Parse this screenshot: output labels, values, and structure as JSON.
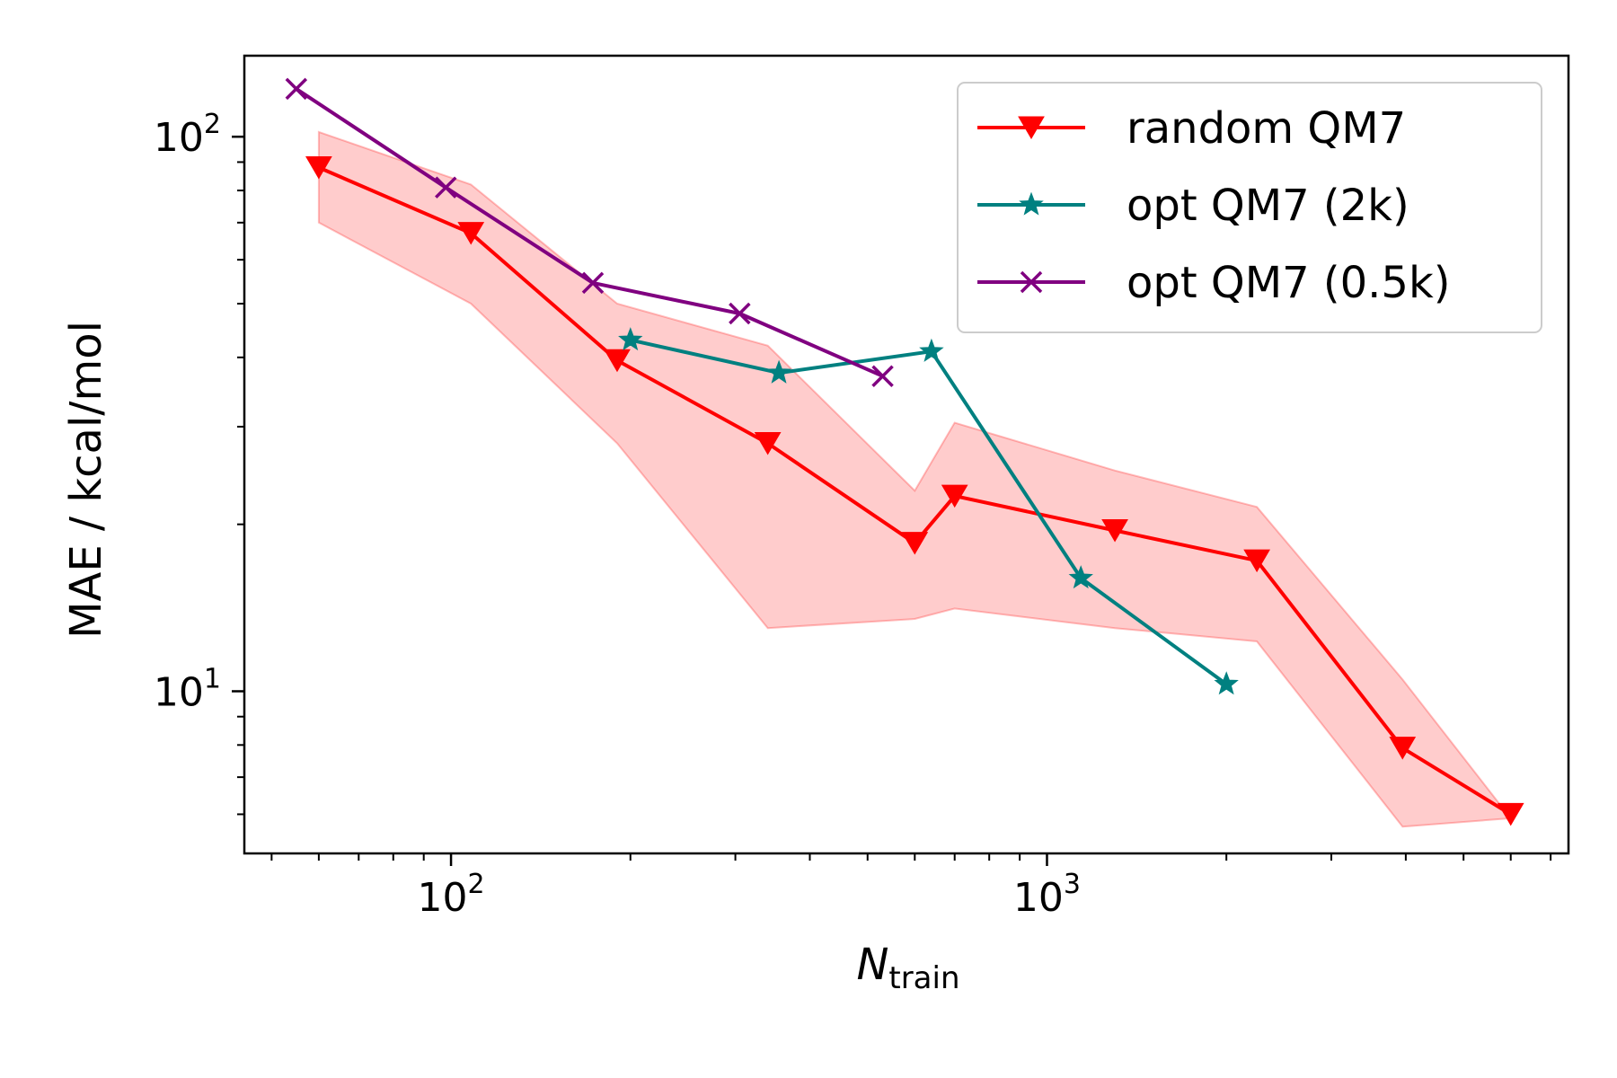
{
  "chart_data": {
    "type": "line",
    "title": "",
    "xlabel": "N",
    "xlabel_sub": "train",
    "ylabel": "MAE / kcal/mol",
    "xscale": "log",
    "yscale": "log",
    "xlim": [
      45,
      7500
    ],
    "ylim": [
      5.1,
      140
    ],
    "x_major_ticks": [
      {
        "value": 100,
        "base": "10",
        "exp": "2"
      },
      {
        "value": 1000,
        "base": "10",
        "exp": "3"
      }
    ],
    "y_major_ticks": [
      {
        "value": 10,
        "base": "10",
        "exp": "1"
      },
      {
        "value": 100,
        "base": "10",
        "exp": "2"
      }
    ],
    "grid": false,
    "legend_position": "top-right",
    "band": {
      "series": "random QM7",
      "color": "#ff0000",
      "opacity": 0.2,
      "x": [
        60,
        108,
        190,
        340,
        600,
        700,
        1300,
        2250,
        3950,
        6000
      ],
      "lower": [
        70,
        50,
        28,
        13,
        13.5,
        14.1,
        13,
        12.3,
        5.7,
        5.9
      ],
      "upper": [
        102,
        82,
        50,
        42,
        23,
        30.5,
        25,
        21.5,
        10.5,
        5.9
      ]
    },
    "series": [
      {
        "name": "random QM7",
        "color": "#ff0000",
        "marker": "triangle-down",
        "x": [
          60,
          108,
          190,
          340,
          600,
          700,
          1300,
          2250,
          3950,
          6000
        ],
        "y": [
          88,
          67,
          39.5,
          28,
          18.5,
          22.5,
          19.5,
          17.2,
          7.9,
          6.0
        ]
      },
      {
        "name": "opt QM7 (2k)",
        "color": "#008080",
        "marker": "star",
        "x": [
          200,
          355,
          640,
          1140,
          2000
        ],
        "y": [
          43,
          37.5,
          41,
          16,
          10.3
        ]
      },
      {
        "name": "opt QM7 (0.5k)",
        "color": "#800080",
        "marker": "x",
        "x": [
          55,
          98,
          173,
          305,
          530
        ],
        "y": [
          122,
          81,
          54.5,
          48,
          37
        ]
      }
    ]
  }
}
